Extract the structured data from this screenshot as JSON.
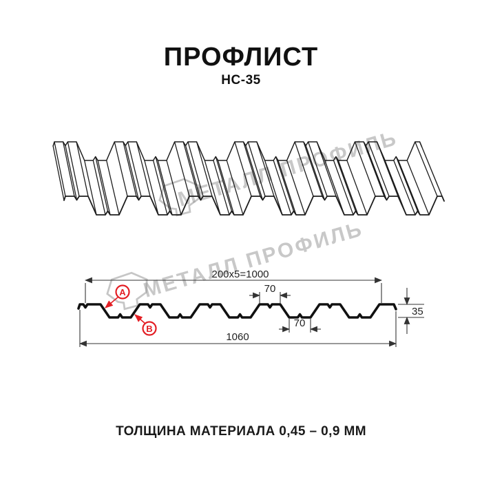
{
  "header": {
    "title": "ПРОФЛИСТ",
    "subtitle": "НС-35"
  },
  "footer": {
    "thickness_label": "ТОЛЩИНА МАТЕРИАЛА 0,45 – 0,9 ММ"
  },
  "watermark": {
    "text": "МЕТАЛЛ ПРОФИЛЬ"
  },
  "colors": {
    "accent_red": "#e31e24",
    "line": "#1c1c1c",
    "dim_line": "#333333",
    "watermark_gray": "#9c9c9c"
  },
  "cross_section": {
    "dimensions": {
      "module_width": "200x5=1000",
      "crest_width": "70",
      "valley_width": "70",
      "total_width": "1060",
      "height": "35"
    },
    "callouts": [
      {
        "id": "A"
      },
      {
        "id": "B"
      }
    ]
  }
}
